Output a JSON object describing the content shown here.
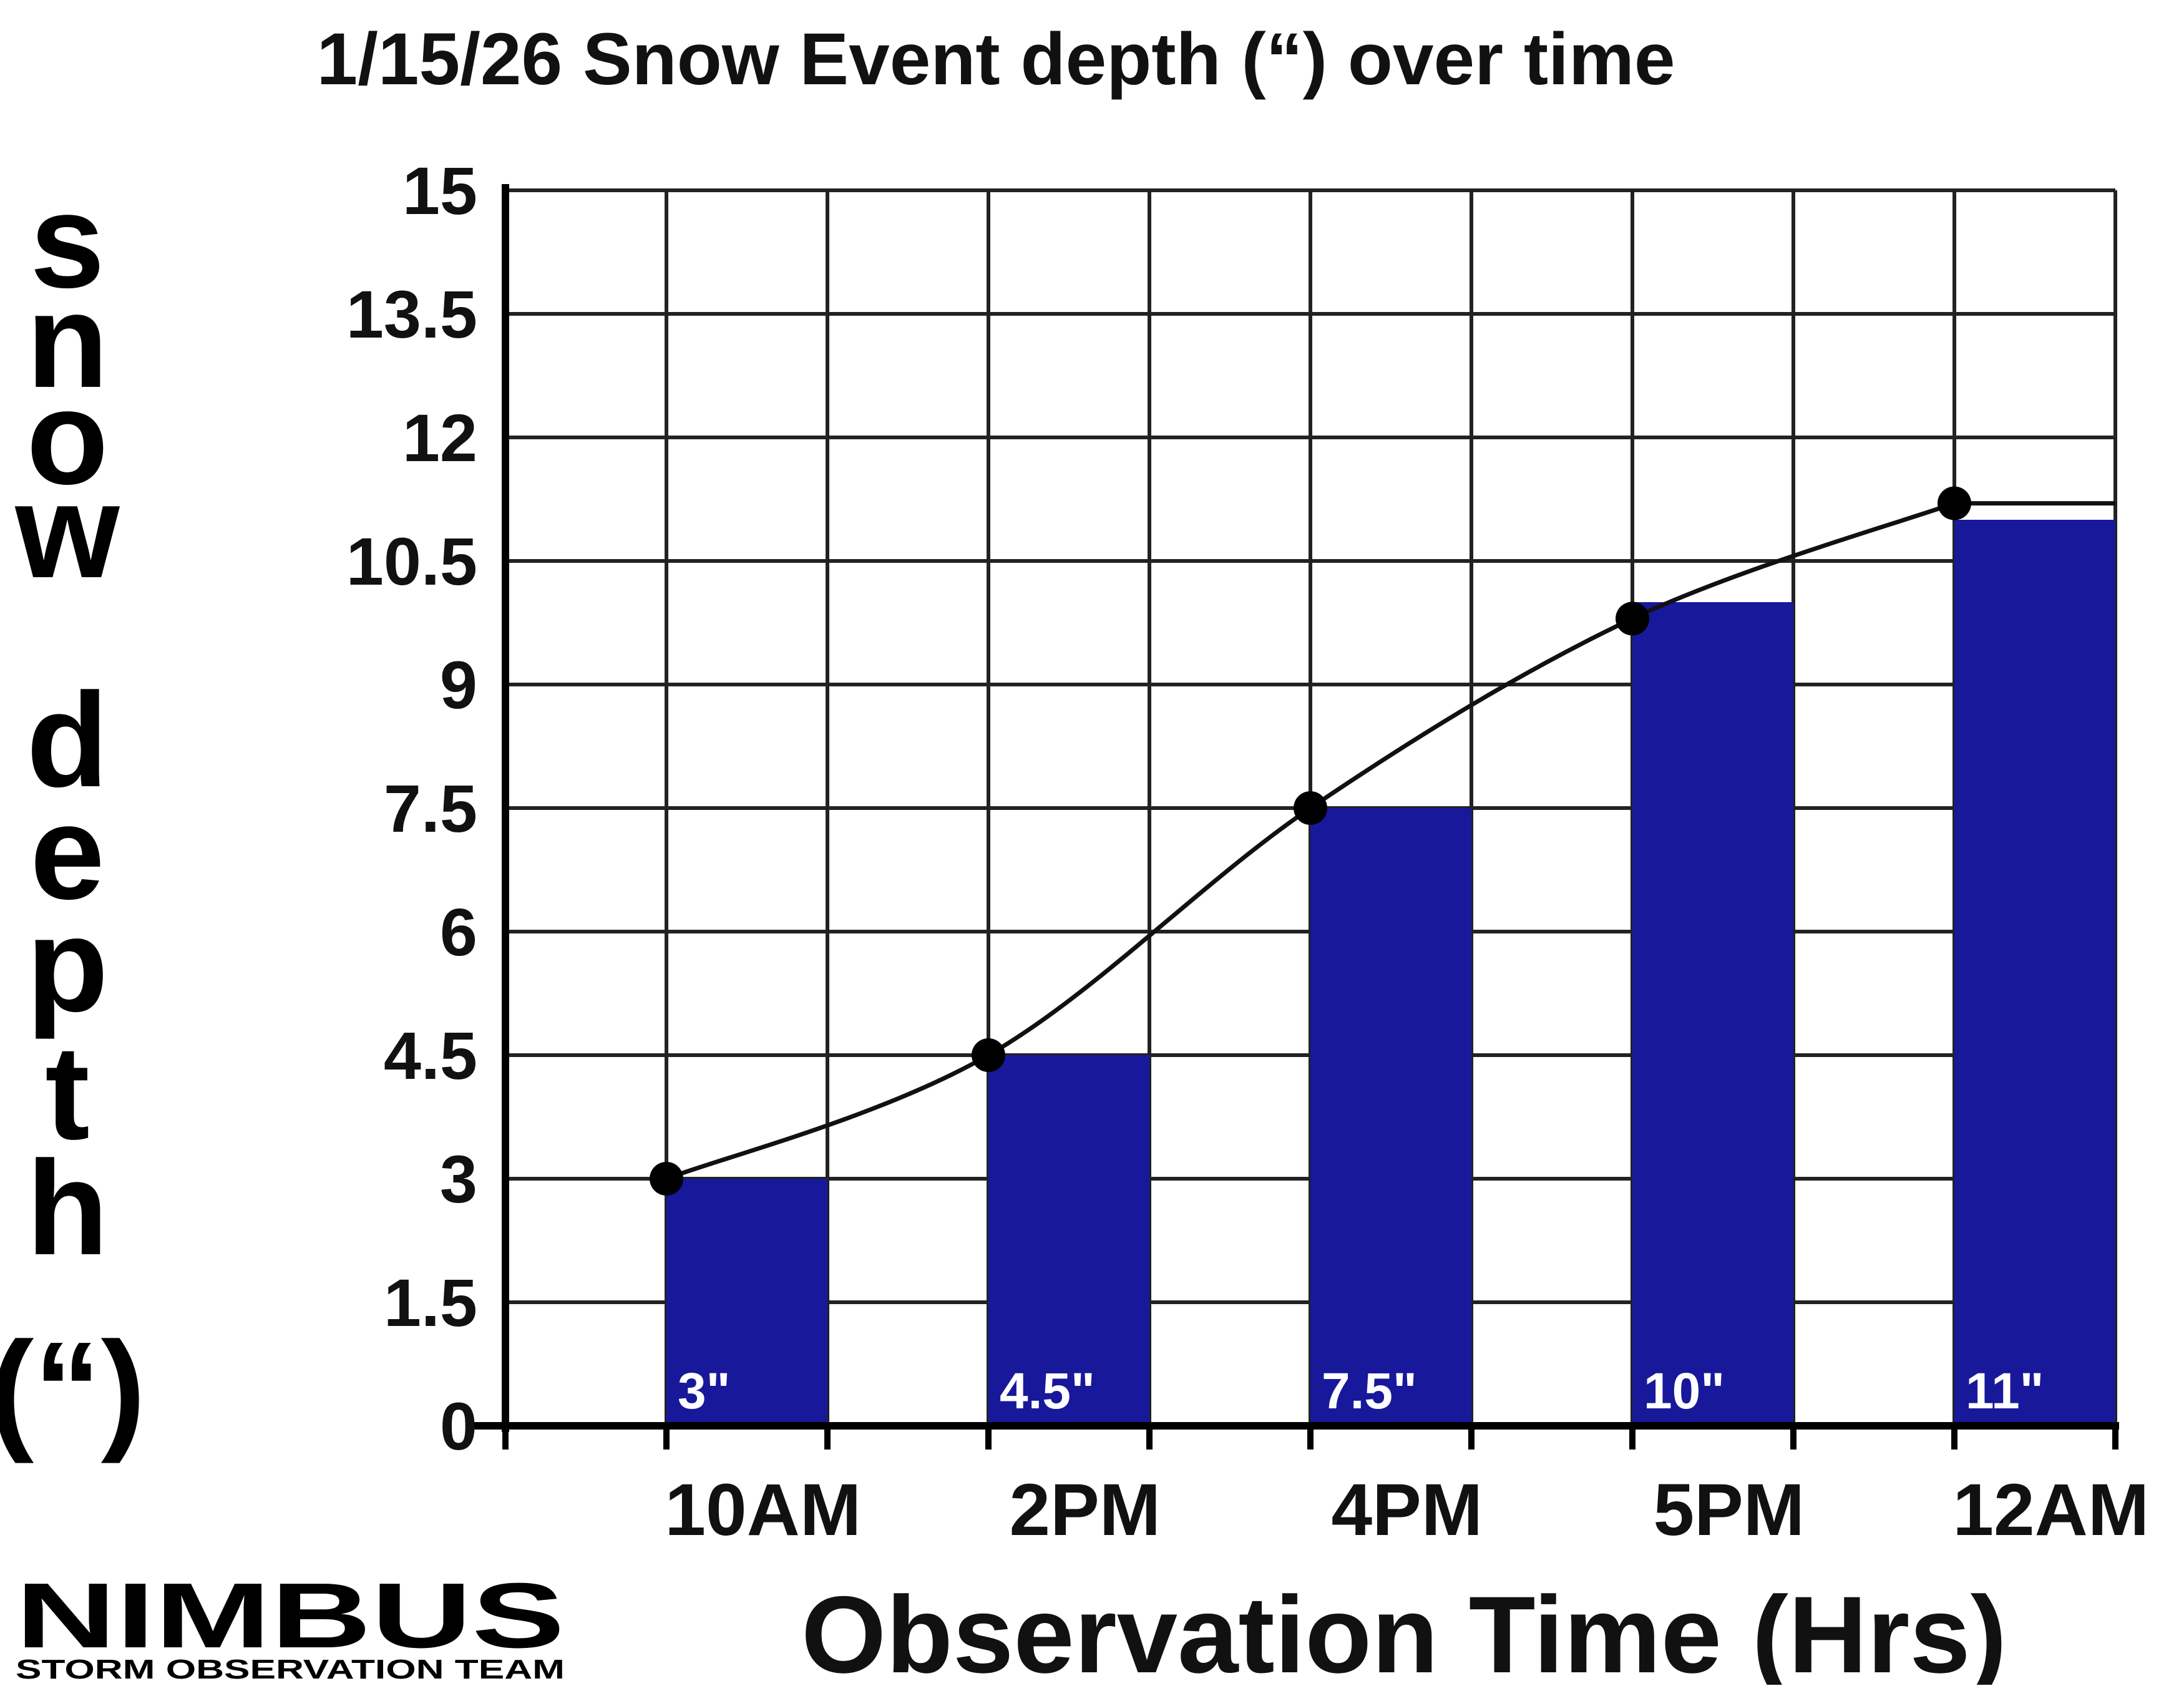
{
  "chart_data": {
    "type": "bar",
    "title": "1/15/26 Snow Event depth (“) over time",
    "xlabel": "Observation Time (Hrs)",
    "ylabel_lines": [
      "s",
      "n",
      "o",
      "w",
      "d",
      "e",
      "p",
      "t",
      "h",
      "(“)"
    ],
    "categories": [
      "10AM",
      "2PM",
      "4PM",
      "5PM",
      "12AM"
    ],
    "values": [
      3,
      4.5,
      7.5,
      10,
      11
    ],
    "bar_labels": [
      "3\"",
      "4.5\"",
      "7.5\"",
      "10\"",
      "11\""
    ],
    "line_values": [
      3,
      4.5,
      7.5,
      9.8,
      11.2
    ],
    "yticks": [
      "0",
      "1.5",
      "3",
      "4.5",
      "6",
      "7.5",
      "9",
      "10.5",
      "12",
      "13.5",
      "15"
    ],
    "ylim": [
      0,
      15
    ],
    "grid": true,
    "legend": "none",
    "colors": {
      "bar": "#18189a",
      "line": "#111111",
      "marker": "#000000",
      "bar_label": "#ffffff"
    }
  },
  "logo": {
    "name": "NIMBUS",
    "tagline": "STORM OBSERVATION TEAM"
  }
}
